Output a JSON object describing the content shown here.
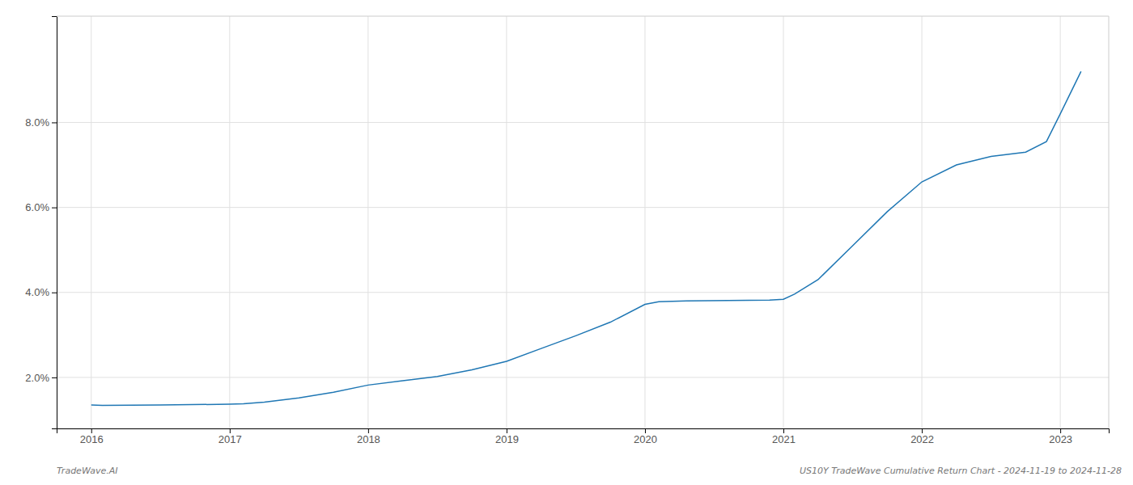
{
  "chart_data": {
    "type": "line",
    "x": [
      2016.0,
      2016.08,
      2016.5,
      2017.0,
      2017.1,
      2017.25,
      2017.5,
      2017.75,
      2018.0,
      2018.25,
      2018.5,
      2018.75,
      2019.0,
      2019.25,
      2019.5,
      2019.75,
      2020.0,
      2020.1,
      2020.3,
      2020.6,
      2020.9,
      2021.0,
      2021.08,
      2021.25,
      2021.5,
      2021.75,
      2022.0,
      2022.25,
      2022.5,
      2022.75,
      2022.9,
      2023.0,
      2023.15
    ],
    "values": [
      1.35,
      1.34,
      1.35,
      1.37,
      1.38,
      1.42,
      1.52,
      1.65,
      1.82,
      1.92,
      2.02,
      2.18,
      2.38,
      2.68,
      2.98,
      3.3,
      3.72,
      3.78,
      3.8,
      3.81,
      3.82,
      3.84,
      3.96,
      4.3,
      5.1,
      5.9,
      6.6,
      7.0,
      7.2,
      7.3,
      7.55,
      8.2,
      9.2
    ],
    "xlim": [
      2015.75,
      2023.35
    ],
    "xticks": [
      2016,
      2017,
      2018,
      2019,
      2020,
      2021,
      2022,
      2023
    ],
    "ylim": [
      0.8,
      10.5
    ],
    "yticks": [
      {
        "value": 2.0,
        "label": "2.0%"
      },
      {
        "value": 4.0,
        "label": "4.0%"
      },
      {
        "value": 6.0,
        "label": "6.0%"
      },
      {
        "value": 8.0,
        "label": "8.0%"
      }
    ],
    "grid": true,
    "annotations": [
      "TradeWave.AI",
      "US10Y TradeWave Cumulative Return Chart - 2024-11-19 to 2024-11-28"
    ]
  }
}
